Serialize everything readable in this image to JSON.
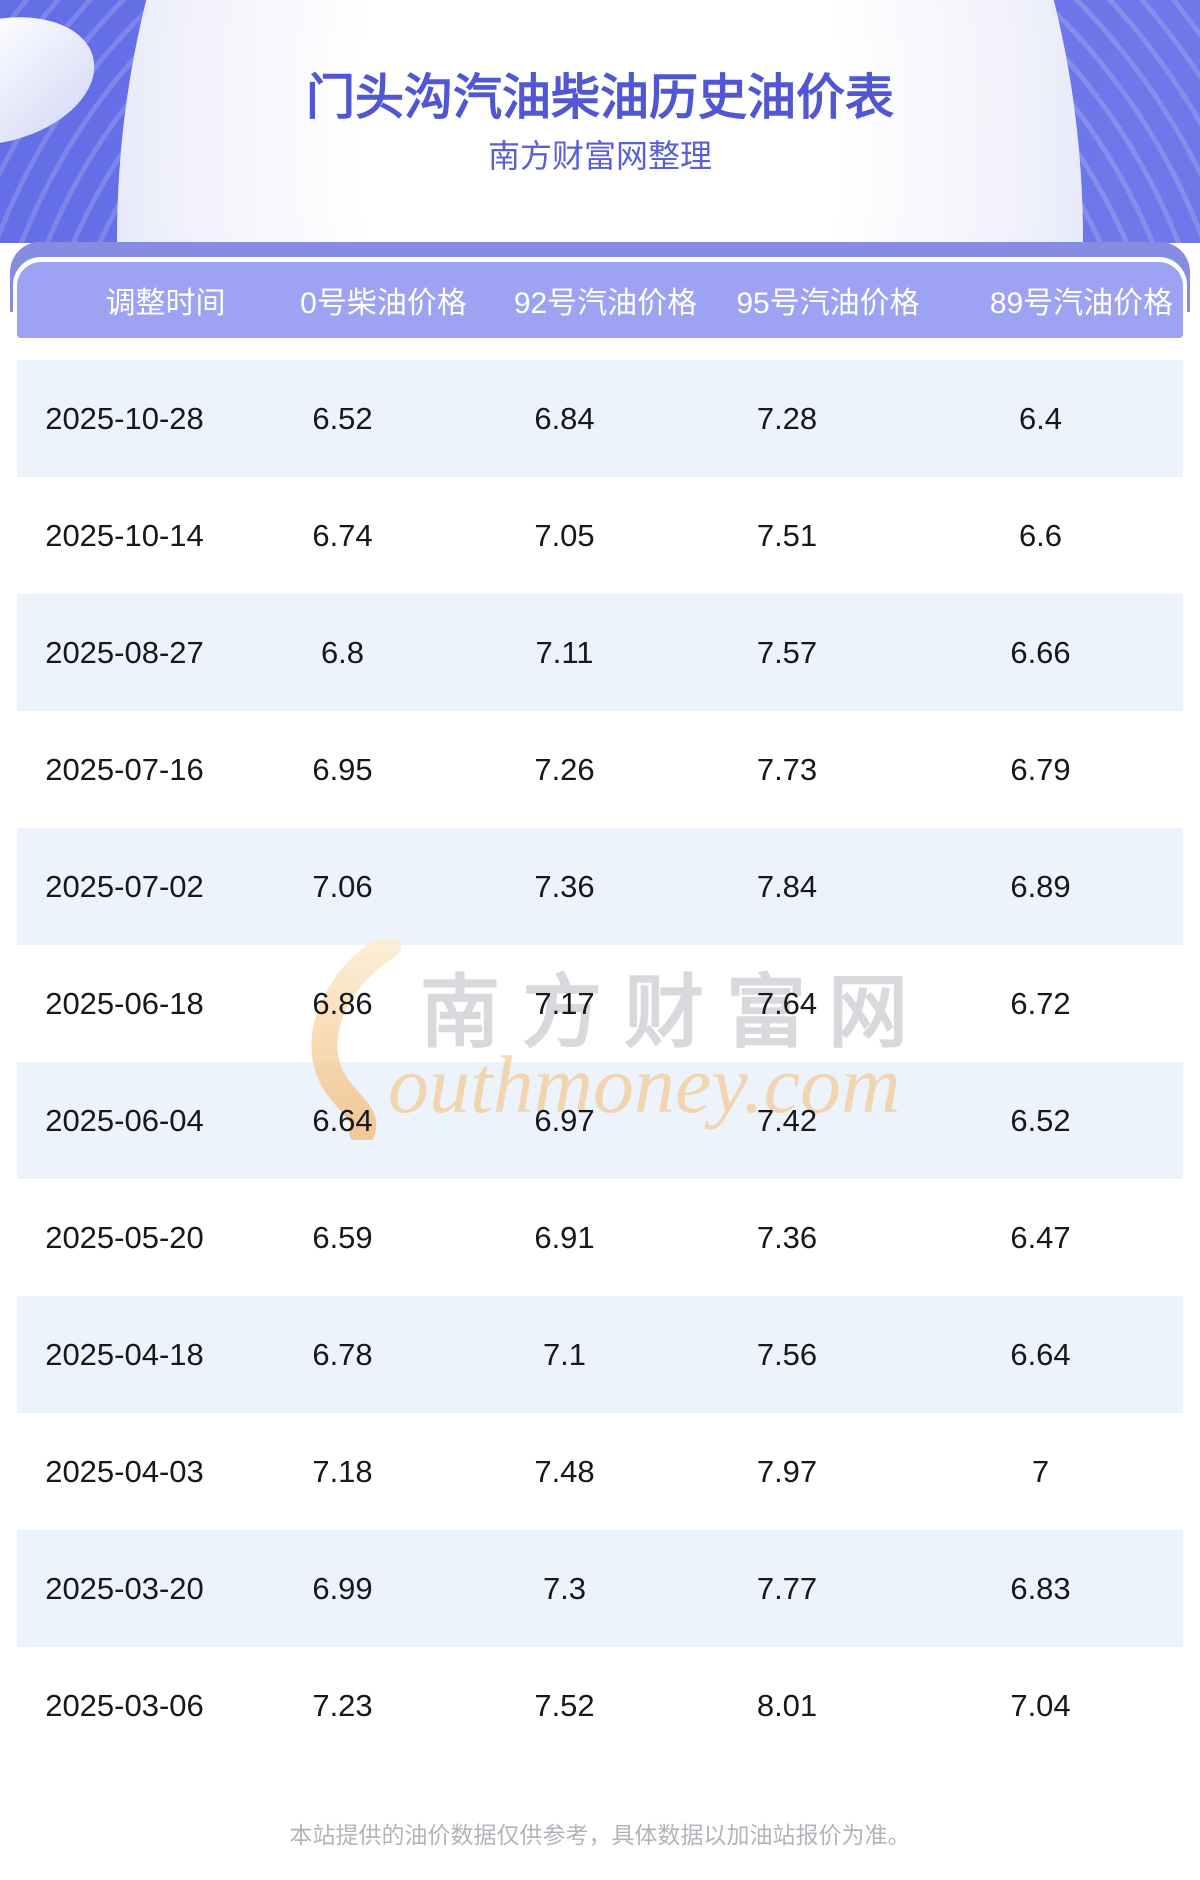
{
  "hero": {
    "title": "门头沟汽油柴油历史油价表",
    "subtitle": "南方财富网整理"
  },
  "table": {
    "columns": [
      "调整时间",
      "0号柴油价格",
      "92号汽油价格",
      "95号汽油价格",
      "89号汽油价格"
    ],
    "rows": [
      [
        "2025-10-28",
        "6.52",
        "6.84",
        "7.28",
        "6.4"
      ],
      [
        "2025-10-14",
        "6.74",
        "7.05",
        "7.51",
        "6.6"
      ],
      [
        "2025-08-27",
        "6.8",
        "7.11",
        "7.57",
        "6.66"
      ],
      [
        "2025-07-16",
        "6.95",
        "7.26",
        "7.73",
        "6.79"
      ],
      [
        "2025-07-02",
        "7.06",
        "7.36",
        "7.84",
        "6.89"
      ],
      [
        "2025-06-18",
        "6.86",
        "7.17",
        "7.64",
        "6.72"
      ],
      [
        "2025-06-04",
        "6.64",
        "6.97",
        "7.42",
        "6.52"
      ],
      [
        "2025-05-20",
        "6.59",
        "6.91",
        "7.36",
        "6.47"
      ],
      [
        "2025-04-18",
        "6.78",
        "7.1",
        "7.56",
        "6.64"
      ],
      [
        "2025-04-03",
        "7.18",
        "7.48",
        "7.97",
        "7"
      ],
      [
        "2025-03-20",
        "6.99",
        "7.3",
        "7.77",
        "6.83"
      ],
      [
        "2025-03-06",
        "7.23",
        "7.52",
        "8.01",
        "7.04"
      ]
    ]
  },
  "watermark": {
    "cn": "南方财富网",
    "en": "outhmoney.com"
  },
  "footer": {
    "disclaimer": "本站提供的油价数据仅供参考，具体数据以加油站报价为准。"
  },
  "colors": {
    "hero_background": "#6B74E9",
    "title_text": "#5156D2",
    "subtitle_text": "#5A5FD6",
    "band_dark": "#868CE2",
    "table_header_background": "#9DA2F2",
    "table_header_text": "#FFFFFF",
    "row_alt_background": "#ECF3FB",
    "cell_text": "#17181C",
    "footer_text": "#B2B4BA",
    "watermark_orange": "#F4BC72",
    "watermark_gray": "#9EA0A8"
  }
}
